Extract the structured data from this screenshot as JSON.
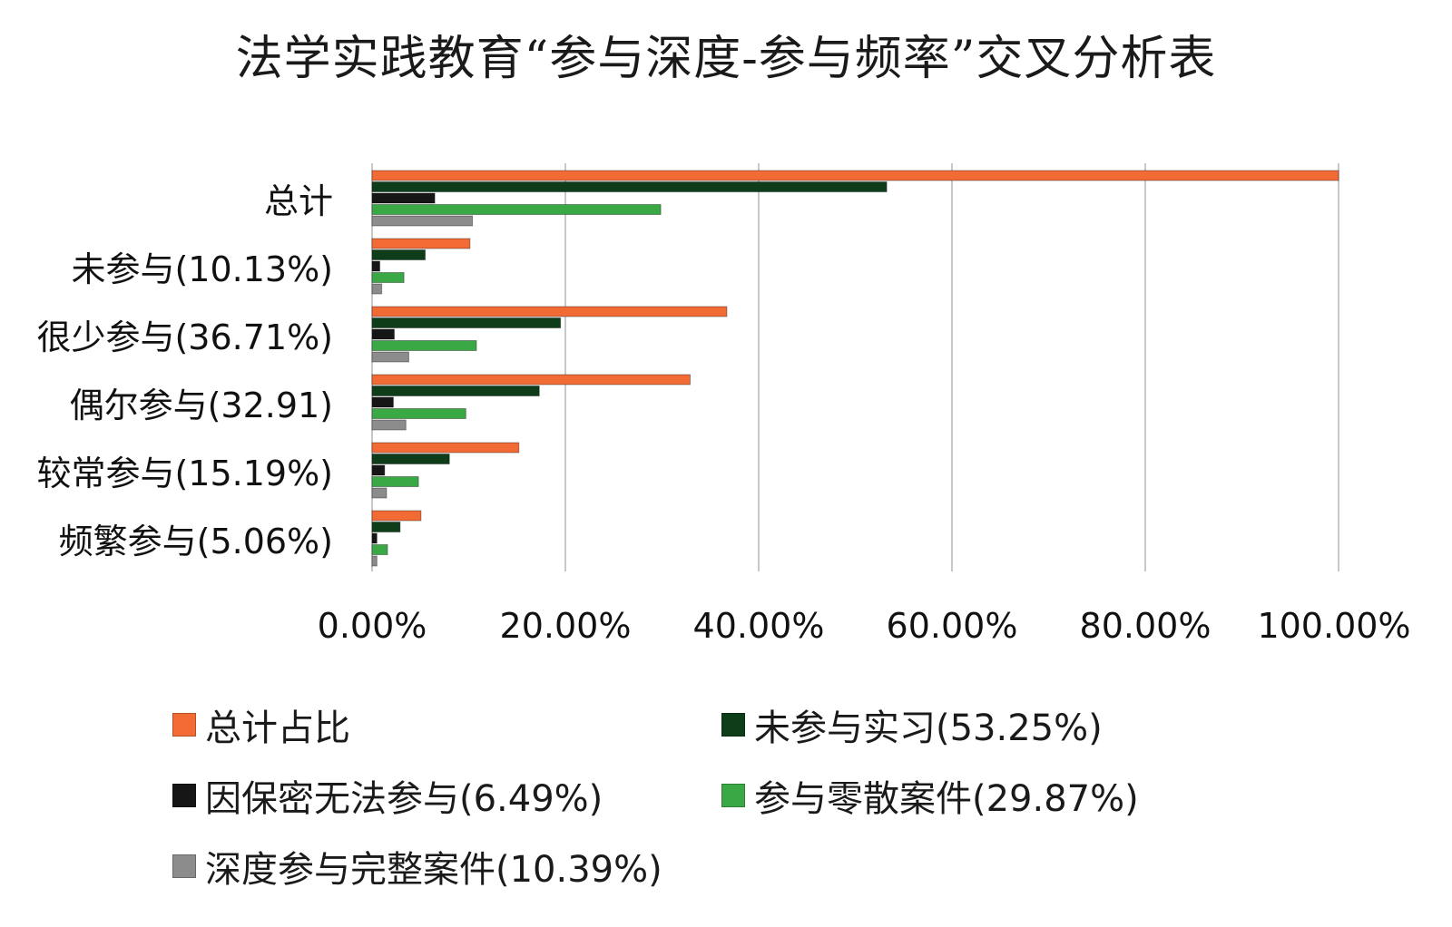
{
  "chart_data": {
    "type": "bar",
    "orientation": "horizontal",
    "title": "法学实践教育“参与深度-参与频率”交叉分析表",
    "categories": [
      "总计",
      "未参与(10.13%)",
      "很少参与(36.71%)",
      "偶尔参与(32.91)",
      "较常参与(15.19%)",
      "频繁参与(5.06%)"
    ],
    "series": [
      {
        "name": "总计占比",
        "color": "#f26b35",
        "values": [
          100.0,
          10.13,
          36.71,
          32.91,
          15.19,
          5.06
        ]
      },
      {
        "name": "未参与实习(53.25%)",
        "color": "#0f3d1a",
        "values": [
          53.25,
          5.5,
          19.5,
          17.3,
          8.0,
          2.9
        ]
      },
      {
        "name": "因保密无法参与(6.49%)",
        "color": "#161616",
        "values": [
          6.49,
          0.8,
          2.3,
          2.2,
          1.3,
          0.5
        ]
      },
      {
        "name": "参与零散案件(29.87%)",
        "color": "#3aa844",
        "values": [
          29.87,
          3.3,
          10.8,
          9.7,
          4.8,
          1.6
        ]
      },
      {
        "name": "深度参与完整案件(10.39%)",
        "color": "#8c8c8c",
        "values": [
          10.39,
          1.0,
          3.8,
          3.5,
          1.5,
          0.5
        ]
      }
    ],
    "xaxis": {
      "ticks": [
        "0.00%",
        "20.00%",
        "40.00%",
        "60.00%",
        "80.00%",
        "100.00%"
      ],
      "xlim": [
        0,
        100
      ]
    },
    "grid": true,
    "legend_position": "bottom"
  }
}
